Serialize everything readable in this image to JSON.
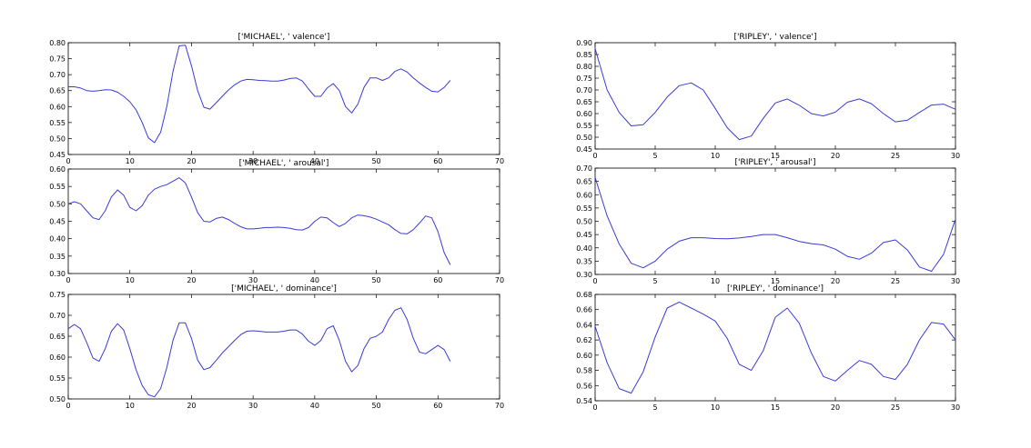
{
  "chart_data": [
    {
      "type": "line",
      "title": "['MICHAEL', ' valence']",
      "xlim": [
        0,
        70
      ],
      "ylim": [
        0.45,
        0.8
      ],
      "xticks": [
        0,
        10,
        20,
        30,
        40,
        50,
        60,
        70
      ],
      "yticks": [
        0.45,
        0.5,
        0.55,
        0.6,
        0.65,
        0.7,
        0.75,
        0.8
      ],
      "tick_decimals": 2,
      "color": "#3b3bd6",
      "x": [
        0,
        1,
        2,
        3,
        4,
        5,
        6,
        7,
        8,
        9,
        10,
        11,
        12,
        13,
        14,
        15,
        16,
        17,
        18,
        19,
        20,
        21,
        22,
        23,
        24,
        25,
        26,
        27,
        28,
        29,
        30,
        31,
        32,
        33,
        34,
        35,
        36,
        37,
        38,
        39,
        40,
        41,
        42,
        43,
        44,
        45,
        46,
        47,
        48,
        49,
        50,
        51,
        52,
        53,
        54,
        55,
        56,
        57,
        58,
        59,
        60,
        61,
        62
      ],
      "values": [
        0.662,
        0.662,
        0.658,
        0.65,
        0.648,
        0.65,
        0.653,
        0.652,
        0.645,
        0.632,
        0.615,
        0.59,
        0.55,
        0.502,
        0.487,
        0.52,
        0.6,
        0.71,
        0.79,
        0.792,
        0.728,
        0.65,
        0.598,
        0.592,
        0.612,
        0.632,
        0.652,
        0.668,
        0.68,
        0.685,
        0.684,
        0.682,
        0.681,
        0.68,
        0.68,
        0.683,
        0.688,
        0.69,
        0.68,
        0.655,
        0.632,
        0.632,
        0.658,
        0.672,
        0.65,
        0.6,
        0.58,
        0.608,
        0.66,
        0.69,
        0.69,
        0.682,
        0.69,
        0.71,
        0.718,
        0.708,
        0.69,
        0.674,
        0.66,
        0.648,
        0.646,
        0.66,
        0.682
      ]
    },
    {
      "type": "line",
      "title": "['MICHAEL', ' arousal']",
      "xlim": [
        0,
        70
      ],
      "ylim": [
        0.3,
        0.6
      ],
      "xticks": [
        0,
        10,
        20,
        30,
        40,
        50,
        60,
        70
      ],
      "yticks": [
        0.3,
        0.35,
        0.4,
        0.45,
        0.5,
        0.55,
        0.6
      ],
      "tick_decimals": 2,
      "color": "#3b3bd6",
      "x": [
        0,
        1,
        2,
        3,
        4,
        5,
        6,
        7,
        8,
        9,
        10,
        11,
        12,
        13,
        14,
        15,
        16,
        17,
        18,
        19,
        20,
        21,
        22,
        23,
        24,
        25,
        26,
        27,
        28,
        29,
        30,
        31,
        32,
        33,
        34,
        35,
        36,
        37,
        38,
        39,
        40,
        41,
        42,
        43,
        44,
        45,
        46,
        47,
        48,
        49,
        50,
        51,
        52,
        53,
        54,
        55,
        56,
        57,
        58,
        59,
        60,
        61,
        62
      ],
      "values": [
        0.5,
        0.506,
        0.5,
        0.48,
        0.46,
        0.455,
        0.48,
        0.52,
        0.54,
        0.525,
        0.49,
        0.48,
        0.495,
        0.525,
        0.542,
        0.55,
        0.555,
        0.565,
        0.575,
        0.56,
        0.52,
        0.475,
        0.45,
        0.448,
        0.458,
        0.462,
        0.455,
        0.444,
        0.434,
        0.428,
        0.428,
        0.43,
        0.432,
        0.432,
        0.433,
        0.432,
        0.43,
        0.426,
        0.425,
        0.432,
        0.45,
        0.462,
        0.46,
        0.446,
        0.435,
        0.444,
        0.46,
        0.468,
        0.466,
        0.462,
        0.456,
        0.448,
        0.44,
        0.426,
        0.415,
        0.414,
        0.426,
        0.445,
        0.465,
        0.46,
        0.42,
        0.36,
        0.325
      ]
    },
    {
      "type": "line",
      "title": "['MICHAEL', ' dominance']",
      "xlim": [
        0,
        70
      ],
      "ylim": [
        0.5,
        0.75
      ],
      "xticks": [
        0,
        10,
        20,
        30,
        40,
        50,
        60,
        70
      ],
      "yticks": [
        0.5,
        0.55,
        0.6,
        0.65,
        0.7,
        0.75
      ],
      "tick_decimals": 2,
      "color": "#3b3bd6",
      "x": [
        0,
        1,
        2,
        3,
        4,
        5,
        6,
        7,
        8,
        9,
        10,
        11,
        12,
        13,
        14,
        15,
        16,
        17,
        18,
        19,
        20,
        21,
        22,
        23,
        24,
        25,
        26,
        27,
        28,
        29,
        30,
        31,
        32,
        33,
        34,
        35,
        36,
        37,
        38,
        39,
        40,
        41,
        42,
        43,
        44,
        45,
        46,
        47,
        48,
        49,
        50,
        51,
        52,
        53,
        54,
        55,
        56,
        57,
        58,
        59,
        60,
        61,
        62
      ],
      "values": [
        0.668,
        0.678,
        0.668,
        0.635,
        0.598,
        0.59,
        0.62,
        0.662,
        0.68,
        0.665,
        0.62,
        0.57,
        0.532,
        0.51,
        0.505,
        0.525,
        0.575,
        0.64,
        0.682,
        0.682,
        0.645,
        0.593,
        0.57,
        0.575,
        0.592,
        0.61,
        0.625,
        0.64,
        0.654,
        0.662,
        0.663,
        0.662,
        0.66,
        0.66,
        0.66,
        0.662,
        0.665,
        0.665,
        0.655,
        0.638,
        0.628,
        0.64,
        0.668,
        0.675,
        0.64,
        0.59,
        0.565,
        0.58,
        0.62,
        0.645,
        0.65,
        0.66,
        0.69,
        0.712,
        0.718,
        0.69,
        0.645,
        0.612,
        0.608,
        0.618,
        0.628,
        0.618,
        0.59
      ]
    },
    {
      "type": "line",
      "title": "['RIPLEY', ' valence']",
      "xlim": [
        0,
        30
      ],
      "ylim": [
        0.45,
        0.9
      ],
      "xticks": [
        0,
        5,
        10,
        15,
        20,
        25,
        30
      ],
      "yticks": [
        0.45,
        0.5,
        0.55,
        0.6,
        0.65,
        0.7,
        0.75,
        0.8,
        0.85,
        0.9
      ],
      "tick_decimals": 2,
      "color": "#3b3bd6",
      "x": [
        0,
        1,
        2,
        3,
        4,
        5,
        6,
        7,
        8,
        9,
        10,
        11,
        12,
        13,
        14,
        15,
        16,
        17,
        18,
        19,
        20,
        21,
        22,
        23,
        24,
        25,
        26,
        27,
        28,
        29,
        30
      ],
      "values": [
        0.875,
        0.7,
        0.605,
        0.548,
        0.553,
        0.605,
        0.67,
        0.718,
        0.73,
        0.7,
        0.622,
        0.54,
        0.49,
        0.505,
        0.58,
        0.645,
        0.662,
        0.635,
        0.6,
        0.59,
        0.606,
        0.648,
        0.662,
        0.642,
        0.6,
        0.565,
        0.572,
        0.605,
        0.636,
        0.64,
        0.618
      ]
    },
    {
      "type": "line",
      "title": "['RIPLEY', ' arousal']",
      "xlim": [
        0,
        30
      ],
      "ylim": [
        0.3,
        0.7
      ],
      "xticks": [
        0,
        5,
        10,
        15,
        20,
        25,
        30
      ],
      "yticks": [
        0.3,
        0.35,
        0.4,
        0.45,
        0.5,
        0.55,
        0.6,
        0.65,
        0.7
      ],
      "tick_decimals": 2,
      "color": "#3b3bd6",
      "x": [
        0,
        1,
        2,
        3,
        4,
        5,
        6,
        7,
        8,
        9,
        10,
        11,
        12,
        13,
        14,
        15,
        16,
        17,
        18,
        19,
        20,
        21,
        22,
        23,
        24,
        25,
        26,
        27,
        28,
        29,
        30
      ],
      "values": [
        0.665,
        0.52,
        0.415,
        0.342,
        0.325,
        0.35,
        0.395,
        0.425,
        0.438,
        0.438,
        0.435,
        0.434,
        0.437,
        0.443,
        0.45,
        0.45,
        0.438,
        0.424,
        0.416,
        0.411,
        0.395,
        0.368,
        0.357,
        0.38,
        0.42,
        0.43,
        0.392,
        0.328,
        0.312,
        0.375,
        0.508
      ]
    },
    {
      "type": "line",
      "title": "['RIPLEY', ' dominance']",
      "xlim": [
        0,
        30
      ],
      "ylim": [
        0.54,
        0.68
      ],
      "xticks": [
        0,
        5,
        10,
        15,
        20,
        25,
        30
      ],
      "yticks": [
        0.54,
        0.56,
        0.58,
        0.6,
        0.62,
        0.64,
        0.66,
        0.68
      ],
      "tick_decimals": 2,
      "color": "#3b3bd6",
      "x": [
        0,
        1,
        2,
        3,
        4,
        5,
        6,
        7,
        8,
        9,
        10,
        11,
        12,
        13,
        14,
        15,
        16,
        17,
        18,
        19,
        20,
        21,
        22,
        23,
        24,
        25,
        26,
        27,
        28,
        29,
        30
      ],
      "values": [
        0.638,
        0.59,
        0.556,
        0.55,
        0.578,
        0.624,
        0.662,
        0.67,
        0.662,
        0.654,
        0.645,
        0.622,
        0.588,
        0.58,
        0.606,
        0.65,
        0.662,
        0.642,
        0.603,
        0.572,
        0.566,
        0.58,
        0.593,
        0.588,
        0.572,
        0.568,
        0.588,
        0.62,
        0.643,
        0.641,
        0.62
      ]
    }
  ]
}
